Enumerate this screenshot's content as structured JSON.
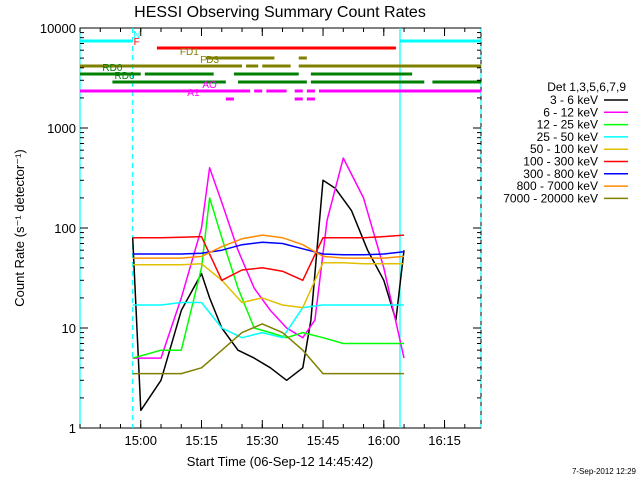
{
  "chart_data": {
    "type": "line",
    "title": "HESSI Observing Summary Count Rates",
    "xlabel": "Start Time (06-Sep-12 14:45:42)",
    "ylabel": "Count Rate (s⁻¹ detector⁻¹)",
    "y_scale": "log",
    "ylim": [
      1,
      10000
    ],
    "xlim": [
      "14:45",
      "16:24"
    ],
    "x_ticks": [
      "15:00",
      "15:15",
      "15:30",
      "15:45",
      "16:00",
      "16:15"
    ],
    "y_ticks": [
      "1",
      "10",
      "100",
      "1000",
      "10000"
    ],
    "grid": false,
    "legend_title": "Det 1,3,5,6,7,9",
    "legend_placement": "right",
    "footer_stamp": "7-Sep-2012 12:29",
    "series": [
      {
        "name": "3 - 6 keV",
        "color": "#000000",
        "x": [
          "14:58",
          "15:00",
          "15:05",
          "15:10",
          "15:15",
          "15:17",
          "15:20",
          "15:24",
          "15:28",
          "15:32",
          "15:36",
          "15:40",
          "15:42",
          "15:45",
          "15:48",
          "15:52",
          "15:56",
          "16:00",
          "16:03",
          "16:05"
        ],
        "values": [
          80,
          1.5,
          3,
          15,
          35,
          20,
          10,
          6,
          5,
          4,
          3,
          4,
          12,
          300,
          250,
          150,
          60,
          30,
          12,
          60
        ]
      },
      {
        "name": "6 - 12 keV",
        "color": "#ff00ff",
        "x": [
          "14:58",
          "15:05",
          "15:10",
          "15:15",
          "15:17",
          "15:20",
          "15:24",
          "15:28",
          "15:32",
          "15:36",
          "15:40",
          "15:43",
          "15:46",
          "15:50",
          "15:55",
          "16:00",
          "16:05"
        ],
        "values": [
          5,
          5,
          20,
          100,
          400,
          180,
          60,
          25,
          15,
          10,
          8,
          12,
          120,
          500,
          200,
          40,
          5
        ]
      },
      {
        "name": "12 - 25 keV",
        "color": "#00ff00",
        "x": [
          "14:58",
          "15:05",
          "15:10",
          "15:15",
          "15:17",
          "15:20",
          "15:24",
          "15:28",
          "15:32",
          "15:36",
          "15:40",
          "15:45",
          "15:50",
          "15:55",
          "16:00",
          "16:05"
        ],
        "values": [
          5,
          6,
          6,
          40,
          200,
          80,
          25,
          10,
          9,
          8,
          9,
          8,
          7,
          7,
          7,
          7
        ]
      },
      {
        "name": "25 - 50 keV",
        "color": "#00ffff",
        "x": [
          "14:58",
          "15:05",
          "15:10",
          "15:15",
          "15:20",
          "15:25",
          "15:30",
          "15:35",
          "15:40",
          "15:45",
          "15:50",
          "15:55",
          "16:00",
          "16:05"
        ],
        "values": [
          17,
          17,
          18,
          18,
          10,
          8,
          9,
          8,
          16,
          17,
          17,
          17,
          17,
          17
        ]
      },
      {
        "name": "50 - 100 keV",
        "color": "#e0c000",
        "x": [
          "14:58",
          "15:05",
          "15:10",
          "15:15",
          "15:20",
          "15:25",
          "15:30",
          "15:35",
          "15:40",
          "15:45",
          "15:50",
          "15:55",
          "16:00",
          "16:05"
        ],
        "values": [
          43,
          43,
          43,
          44,
          30,
          18,
          20,
          17,
          16,
          45,
          45,
          44,
          44,
          44
        ]
      },
      {
        "name": "100 - 300 keV",
        "color": "#ff0000",
        "x": [
          "14:58",
          "15:05",
          "15:10",
          "15:15",
          "15:20",
          "15:25",
          "15:30",
          "15:35",
          "15:40",
          "15:45",
          "15:50",
          "15:55",
          "16:00",
          "16:05"
        ],
        "values": [
          80,
          80,
          81,
          82,
          30,
          38,
          40,
          37,
          30,
          80,
          80,
          80,
          82,
          85
        ]
      },
      {
        "name": "300 - 800 keV",
        "color": "#0000ff",
        "x": [
          "14:58",
          "15:05",
          "15:10",
          "15:15",
          "15:20",
          "15:25",
          "15:30",
          "15:35",
          "15:40",
          "15:45",
          "15:50",
          "15:55",
          "16:00",
          "16:05"
        ],
        "values": [
          55,
          55,
          55,
          56,
          60,
          68,
          72,
          70,
          62,
          55,
          54,
          54,
          55,
          58
        ]
      },
      {
        "name": "800 - 7000 keV",
        "color": "#ff8c00",
        "x": [
          "14:58",
          "15:05",
          "15:10",
          "15:15",
          "15:20",
          "15:25",
          "15:30",
          "15:35",
          "15:40",
          "15:45",
          "15:50",
          "15:55",
          "16:00",
          "16:05"
        ],
        "values": [
          50,
          50,
          50,
          52,
          65,
          78,
          85,
          80,
          68,
          52,
          50,
          50,
          50,
          52
        ]
      },
      {
        "name": "7000 - 20000 keV",
        "color": "#808000",
        "x": [
          "14:58",
          "15:05",
          "15:10",
          "15:15",
          "15:20",
          "15:25",
          "15:30",
          "15:35",
          "15:40",
          "15:45",
          "15:50",
          "15:55",
          "16:00",
          "16:05"
        ],
        "values": [
          3.5,
          3.5,
          3.5,
          4,
          6,
          9,
          11,
          9,
          6,
          3.5,
          3.5,
          3.5,
          3.5,
          3.5
        ]
      }
    ],
    "flag_bars": [
      {
        "label": "N",
        "color": "#00ffff",
        "segments": [
          [
            "14:45",
            "14:58"
          ],
          [
            "16:04",
            "16:24"
          ]
        ]
      },
      {
        "label": "F",
        "color": "#ff0000",
        "segments": [
          [
            "15:04",
            "16:03"
          ]
        ]
      },
      {
        "label": "FD1",
        "color": "#808000",
        "segments": [
          [
            "15:16",
            "15:33"
          ],
          [
            "15:39",
            "15:41"
          ]
        ]
      },
      {
        "label": "FD3",
        "color": "#808000",
        "segments": [
          [
            "14:45",
            "15:25"
          ],
          [
            "15:26",
            "15:29"
          ],
          [
            "15:30",
            "15:37"
          ],
          [
            "15:39",
            "16:24"
          ]
        ]
      },
      {
        "label": "RD0",
        "color": "#008000",
        "segments": [
          [
            "14:45",
            "15:00"
          ],
          [
            "15:01",
            "15:18"
          ],
          [
            "15:23",
            "15:39"
          ],
          [
            "15:42",
            "16:07"
          ]
        ]
      },
      {
        "label": "RD6",
        "color": "#008000",
        "segments": [
          [
            "14:53",
            "15:21"
          ],
          [
            "15:24",
            "15:41"
          ],
          [
            "15:42",
            "16:10"
          ],
          [
            "16:12",
            "16:24"
          ]
        ]
      },
      {
        "label": "AO",
        "color": "#ff00ff",
        "segments": [
          [
            "14:45",
            "15:27"
          ],
          [
            "15:28",
            "15:30"
          ],
          [
            "15:31",
            "15:36"
          ],
          [
            "15:38",
            "15:40"
          ],
          [
            "15:41",
            "15:43"
          ],
          [
            "15:44",
            "16:24"
          ]
        ]
      },
      {
        "label": "A1",
        "color": "#ff00ff",
        "segments": [
          [
            "15:21",
            "15:23"
          ],
          [
            "15:38",
            "15:40"
          ],
          [
            "15:41",
            "15:43"
          ]
        ]
      }
    ],
    "vertical_markers": [
      {
        "x": "14:45",
        "color": "#00ffff",
        "style": "solid"
      },
      {
        "x": "14:58",
        "color": "#00ffff",
        "style": "dashed"
      },
      {
        "x": "16:04",
        "color": "#00ffff",
        "style": "solid"
      },
      {
        "x": "16:24",
        "color": "#00ffff",
        "style": "dashed"
      }
    ]
  }
}
